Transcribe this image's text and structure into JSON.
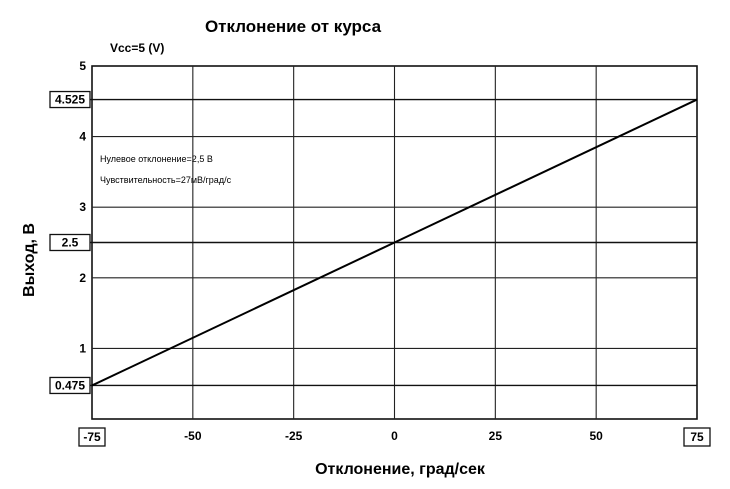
{
  "chart_data": {
    "type": "line",
    "title": "Отклонение от курса",
    "supply_label": "Vcc=5 (V)",
    "xlabel": "Отклонение, град/сек",
    "ylabel": "Выход, В",
    "xlim": [
      -75,
      75
    ],
    "ylim": [
      0,
      5
    ],
    "x_ticks": [
      -50,
      -25,
      0,
      25,
      50
    ],
    "y_ticks": [
      1,
      2,
      3,
      4,
      5
    ],
    "boxed_x_ticks": [
      "-75",
      "75"
    ],
    "boxed_y_ticks": [
      "4.525",
      "2.5",
      "0.475"
    ],
    "boxed_y_values": [
      4.525,
      2.5,
      0.475
    ],
    "annotations": [
      "Нулевое отклонение=2,5 В",
      "Чувствительность=27мВ/град/с"
    ],
    "grid": true,
    "series": [
      {
        "x": [
          -75,
          0,
          75
        ],
        "y": [
          0.475,
          2.5,
          4.525
        ]
      }
    ]
  }
}
